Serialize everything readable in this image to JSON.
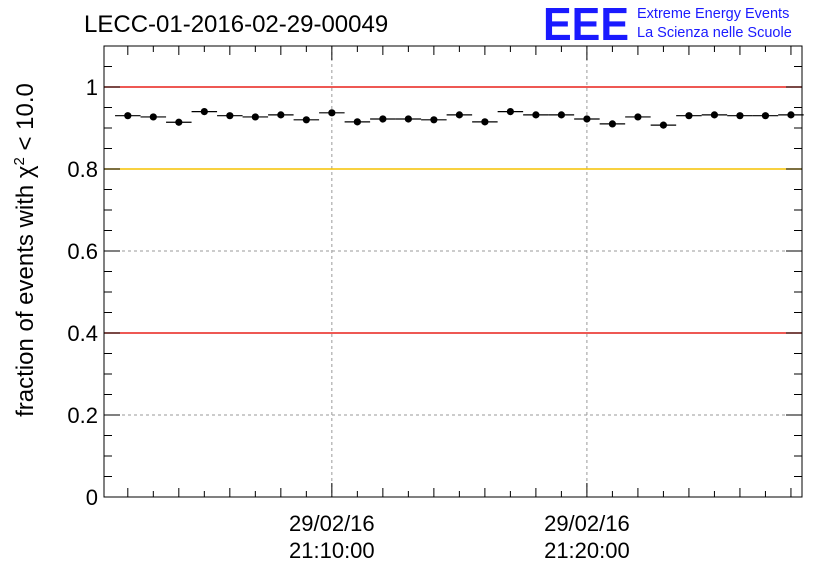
{
  "header": {
    "title": "LECC-01-2016-02-29-00049",
    "logo_mark": "EEE",
    "logo_line1": "Extreme Energy Events",
    "logo_line2": "La Scienza nelle Scuole",
    "logo_color": "#1a1aff"
  },
  "chart_data": {
    "type": "scatter",
    "title": "LECC-01-2016-02-29-00049",
    "ylabel": "fraction of events with χ² < 10.0",
    "ylabel_parts": {
      "pre": "fraction of events with ",
      "chi": "χ",
      "sup": "2",
      "post": " < 10.0"
    },
    "xlabel": "",
    "ylim": [
      0,
      1.1
    ],
    "yticks": [
      "0",
      "0.2",
      "0.4",
      "0.6",
      "0.8",
      "1"
    ],
    "xticks": [
      {
        "date": "29/02/16",
        "time": "21:10:00"
      },
      {
        "date": "29/02/16",
        "time": "21:20:00"
      }
    ],
    "grid": true,
    "x_axis": "time",
    "bin_width_minutes": 1,
    "reference_lines": [
      {
        "value": 1.0,
        "color": "#e8211a"
      },
      {
        "value": 0.8,
        "color": "#f5c200"
      },
      {
        "value": 0.4,
        "color": "#e8211a"
      }
    ],
    "series": [
      {
        "marker": "circle",
        "color": "#000000",
        "x": [
          "21:02:00",
          "21:03:00",
          "21:04:00",
          "21:05:00",
          "21:06:00",
          "21:07:00",
          "21:08:00",
          "21:09:00",
          "21:10:00",
          "21:11:00",
          "21:12:00",
          "21:13:00",
          "21:14:00",
          "21:15:00",
          "21:16:00",
          "21:17:00",
          "21:18:00",
          "21:19:00",
          "21:20:00",
          "21:21:00",
          "21:22:00",
          "21:23:00",
          "21:24:00",
          "21:25:00",
          "21:26:00",
          "21:27:00",
          "21:28:00"
        ],
        "values": [
          0.93,
          0.927,
          0.914,
          0.94,
          0.93,
          0.927,
          0.932,
          0.92,
          0.937,
          0.915,
          0.922,
          0.922,
          0.92,
          0.932,
          0.915,
          0.94,
          0.932,
          0.932,
          0.922,
          0.91,
          0.927,
          0.907,
          0.93,
          0.932,
          0.93,
          0.93,
          0.932
        ]
      }
    ]
  }
}
